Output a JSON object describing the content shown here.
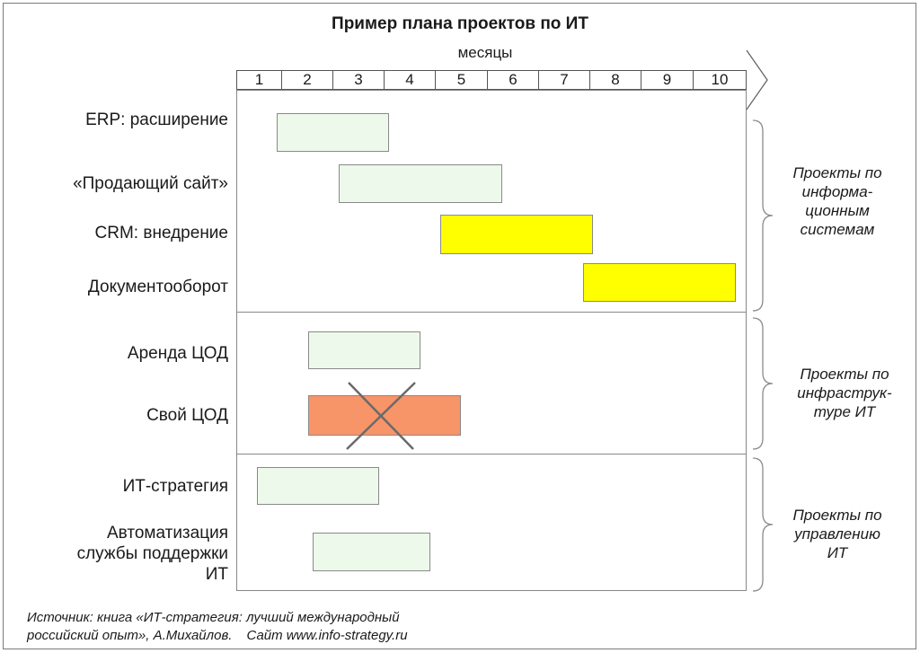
{
  "title": "Пример плана проектов по ИТ",
  "months_label": "месяцы",
  "months": [
    "1",
    "2",
    "3",
    "4",
    "5",
    "6",
    "7",
    "8",
    "9",
    "10"
  ],
  "tasks": [
    {
      "label": "ERP: расширение",
      "start_month": 1.8,
      "end_month": 4.0,
      "color": "#edf9ea",
      "crossed": false
    },
    {
      "label": "«Продающий сайт»",
      "start_month": 3.0,
      "end_month": 6.2,
      "color": "#edf9ea",
      "crossed": false
    },
    {
      "label": "CRM: внедрение",
      "start_month": 5.0,
      "end_month": 8.0,
      "color": "#ffff00",
      "crossed": false
    },
    {
      "label": "Документооборот",
      "start_month": 7.8,
      "end_month": 10.8,
      "color": "#ffff00",
      "crossed": false
    },
    {
      "label": "Аренда ЦОД",
      "start_month": 2.4,
      "end_month": 4.6,
      "color": "#edf9ea",
      "crossed": false
    },
    {
      "label": "Свой ЦОД",
      "start_month": 2.4,
      "end_month": 5.4,
      "color": "#f79468",
      "crossed": true
    },
    {
      "label": "ИТ-стратегия",
      "start_month": 1.4,
      "end_month": 3.8,
      "color": "#edf9ea",
      "crossed": false
    },
    {
      "label_lines": [
        "Автоматизация",
        "службы поддержки",
        "ИТ"
      ],
      "start_month": 2.5,
      "end_month": 4.8,
      "color": "#edf9ea",
      "crossed": false
    }
  ],
  "groups": [
    {
      "label_lines": [
        "Проекты по",
        "информа-",
        "ционным",
        "системам"
      ]
    },
    {
      "label_lines": [
        "Проекты по",
        "инфраструк-",
        "туре ИТ"
      ]
    },
    {
      "label_lines": [
        "Проекты по",
        "управлению",
        "ИТ"
      ]
    }
  ],
  "source": {
    "line1": "Источник: книга «ИТ-стратегия: лучший международный",
    "line2": "российский опыт», А.Михайлов.",
    "site": "Сайт www.info-strategy.ru"
  }
}
